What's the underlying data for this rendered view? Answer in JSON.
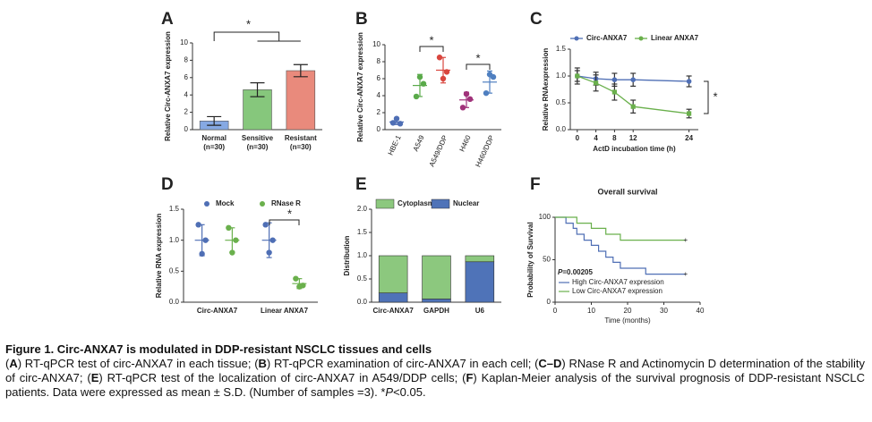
{
  "chart_data": [
    {
      "type": "bar",
      "panel": "A",
      "ylabel": "Relative Circ-ANXA7 expression",
      "categories": [
        [
          "Normal",
          "(n=30)"
        ],
        [
          "Sensitive",
          "(n=30)"
        ],
        [
          "Resistant",
          "(n=30)"
        ]
      ],
      "values": [
        1.0,
        4.6,
        6.8
      ],
      "errors": [
        0.5,
        0.8,
        0.7
      ],
      "colors": [
        "#86a9e3",
        "#86c77c",
        "#e98a7c"
      ],
      "ylim": [
        0,
        10
      ],
      "yticks": [
        0,
        2,
        4,
        6,
        8,
        10
      ],
      "annotations": [
        "*"
      ]
    },
    {
      "type": "dot",
      "panel": "B",
      "ylabel": "Relative Circ-ANXA7 expression",
      "categories": [
        "HBE-1",
        "A549",
        "A549/DDP",
        "H460",
        "H460/DDP"
      ],
      "values": [
        0.9,
        5.2,
        7.0,
        3.5,
        5.6
      ],
      "errors": [
        0.3,
        1.3,
        1.5,
        0.9,
        1.3
      ],
      "points": [
        [
          0.8,
          1.3,
          0.7
        ],
        [
          3.9,
          6.2,
          5.4
        ],
        [
          8.5,
          6.0,
          6.8
        ],
        [
          2.6,
          4.2,
          3.6
        ],
        [
          4.3,
          6.5,
          6.2
        ]
      ],
      "colors": [
        "#4f6fb5",
        "#5aaa4a",
        "#d9463e",
        "#a0327a",
        "#4f7fc0"
      ],
      "ylim": [
        0,
        10
      ],
      "yticks": [
        0,
        2,
        4,
        6,
        8,
        10
      ],
      "annotations": [
        "*",
        "*"
      ]
    },
    {
      "type": "line",
      "panel": "C",
      "ylabel": "Relative RNAexpression",
      "xlabel": "ActD incubation time (h)",
      "x": [
        0,
        4,
        8,
        12,
        24
      ],
      "xlim": [
        -1.5,
        26
      ],
      "xticks": [
        0,
        4,
        8,
        12,
        24
      ],
      "ylim": [
        0,
        1.5
      ],
      "yticks": [
        {
          "value": 0,
          "label": "0.0"
        },
        {
          "value": 0.5,
          "label": "0.5"
        },
        {
          "value": 1,
          "label": "1.0"
        },
        {
          "value": 1.5,
          "label": "1.5"
        }
      ],
      "series": [
        {
          "name": "Circ-ANXA7",
          "color": "#4f6fb5",
          "values": [
            1.0,
            0.95,
            0.93,
            0.93,
            0.9
          ],
          "errors": [
            0.1,
            0.12,
            0.12,
            0.12,
            0.1
          ]
        },
        {
          "name": "Linear ANXA7",
          "color": "#6ab04c",
          "values": [
            1.0,
            0.87,
            0.7,
            0.43,
            0.3
          ],
          "errors": [
            0.15,
            0.15,
            0.15,
            0.12,
            0.08
          ]
        }
      ],
      "annotations": [
        "*"
      ]
    },
    {
      "type": "dot",
      "panel": "D",
      "ylabel": "Relative RNA expression",
      "categories": [
        "Circ-ANXA7",
        "Linear ANXA7"
      ],
      "ylim": [
        0,
        1.5
      ],
      "yticks": [
        {
          "value": 0,
          "label": "0.0"
        },
        {
          "value": 0.5,
          "label": "0.5"
        },
        {
          "value": 1,
          "label": "1.0"
        },
        {
          "value": 1.5,
          "label": "1.5"
        }
      ],
      "series": [
        {
          "name": "Mock",
          "color": "#4f6fb5",
          "values": [
            1.0,
            1.0
          ],
          "errors": [
            0.25,
            0.28
          ],
          "points": [
            [
              1.25,
              0.78,
              1.0
            ],
            [
              1.25,
              0.8,
              1.0
            ]
          ]
        },
        {
          "name": "RNase R",
          "color": "#6ab04c",
          "values": [
            1.0,
            0.3
          ],
          "errors": [
            0.2,
            0.08
          ],
          "points": [
            [
              1.2,
              0.8,
              1.0
            ],
            [
              0.38,
              0.25,
              0.27
            ]
          ]
        }
      ],
      "annotations": [
        "*"
      ]
    },
    {
      "type": "stacked_bar",
      "panel": "E",
      "ylabel": "Distribution",
      "categories": [
        "Circ-ANXA7",
        "GAPDH",
        "U6"
      ],
      "ylim": [
        0,
        2
      ],
      "yticks": [
        {
          "value": 0,
          "label": "0.0"
        },
        {
          "value": 0.5,
          "label": "0.5"
        },
        {
          "value": 1,
          "label": "1.0"
        },
        {
          "value": 1.5,
          "label": "1.5"
        },
        {
          "value": 2,
          "label": "2.0"
        }
      ],
      "series": [
        {
          "name": "Cytoplasm",
          "color": "#8cc87e",
          "values": [
            0.8,
            0.93,
            0.13
          ]
        },
        {
          "name": "Nuclear",
          "color": "#4f73b8",
          "values": [
            0.2,
            0.07,
            0.87
          ]
        }
      ]
    },
    {
      "type": "survival",
      "panel": "F",
      "title": "Overall survival",
      "ylabel": "Probability of Survival",
      "xlabel": "Time (months)",
      "xlim": [
        0,
        40
      ],
      "xticks": [
        0,
        10,
        20,
        30,
        40
      ],
      "ylim": [
        0,
        100
      ],
      "yticks": [
        0,
        50,
        100
      ],
      "annotation": [
        {
          "text": "P",
          "italic": true
        },
        {
          "text": "=0.00205"
        }
      ],
      "series": [
        {
          "name": "High Circ-ANXA7 expression",
          "color": "#4f6fb5",
          "x": [
            0,
            3,
            5,
            6,
            8,
            10,
            12,
            14,
            16,
            18,
            25,
            36
          ],
          "values": [
            100,
            93,
            87,
            80,
            73,
            67,
            60,
            53,
            47,
            40,
            33,
            33
          ]
        },
        {
          "name": "Low Circ-ANXA7 expression",
          "color": "#6ab04c",
          "x": [
            0,
            6,
            10,
            14,
            18,
            36
          ],
          "values": [
            100,
            93,
            87,
            80,
            73,
            73
          ]
        }
      ]
    }
  ],
  "caption": {
    "title": "Figure 1. Circ-ANXA7 is modulated in DDP-resistant NSCLC tissues and cells",
    "runs": [
      {
        "text": "("
      },
      {
        "text": "A",
        "bold": true
      },
      {
        "text": ") RT-qPCR test of circ-ANXA7 in each tissue; ("
      },
      {
        "text": "B",
        "bold": true
      },
      {
        "text": ") RT-qPCR examination of circ-ANXA7 in each cell; ("
      },
      {
        "text": "C–D",
        "bold": true
      },
      {
        "text": ") RNase R and Actinomycin D determination of the stability of circ-ANXA7; ("
      },
      {
        "text": "E",
        "bold": true
      },
      {
        "text": ") RT-qPCR test of the localization of circ-ANXA7 in A549/DDP cells; ("
      },
      {
        "text": "F",
        "bold": true
      },
      {
        "text": ") Kaplan-Meier analysis of the survival prognosis of DDP-resistant NSCLC patients. Data were expressed as mean ± S.D. (Number of samples =3). *"
      },
      {
        "text": "P",
        "italic": true
      },
      {
        "text": "<0.05."
      }
    ]
  }
}
